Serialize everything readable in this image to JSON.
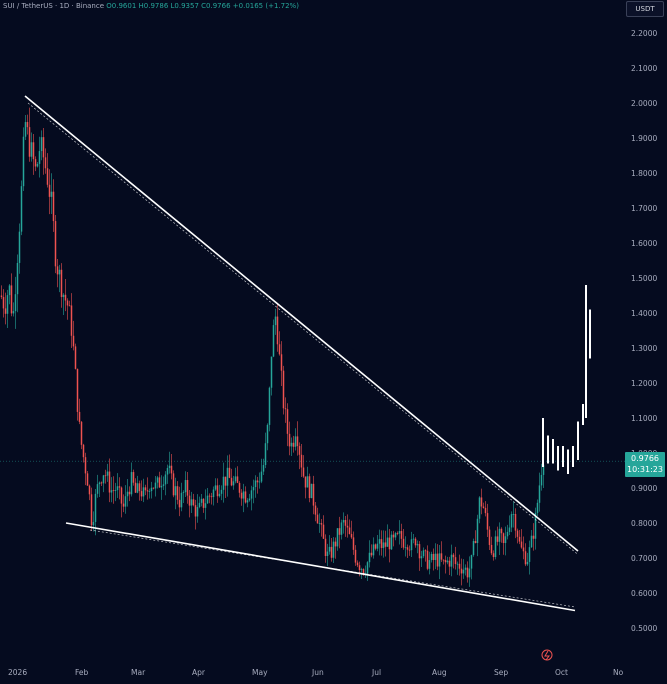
{
  "header": {
    "symbol": "SUI / TetherUS · 1D · Binance",
    "open": "O0.9601",
    "high": "H0.9786",
    "low": "L0.9357",
    "close": "C0.9766",
    "change": "+0.0165 (+1.72%)"
  },
  "currency_badge": "USDT",
  "last_price": {
    "price": "0.9766",
    "countdown": "10:31:23"
  },
  "colors": {
    "background": "#050b1f",
    "up": "#26a69a",
    "down": "#ef5350",
    "trendline": "#ffffff",
    "axis_text": "#a8adbf"
  },
  "chart_data": {
    "type": "candlestick",
    "x_tick_labels": [
      "2026",
      "Feb",
      "Mar",
      "Apr",
      "May",
      "Jun",
      "Jul",
      "Aug",
      "Sep",
      "Oct",
      "No"
    ],
    "y_tick_labels": [
      "2.2000",
      "2.1000",
      "2.0000",
      "1.9000",
      "1.8000",
      "1.7000",
      "1.6000",
      "1.5000",
      "1.4000",
      "1.3000",
      "1.2000",
      "1.1000",
      "1.0000",
      "0.9000",
      "0.8000",
      "0.7000",
      "0.6000",
      "0.5000"
    ],
    "ylim": [
      0.46,
      2.27
    ],
    "price_path": [
      [
        1,
        1.45
      ],
      [
        5,
        1.42
      ],
      [
        9,
        1.48
      ],
      [
        13,
        1.38
      ],
      [
        17,
        1.55
      ],
      [
        21,
        1.72
      ],
      [
        25,
        1.95
      ],
      [
        28,
        1.9
      ],
      [
        32,
        1.85
      ],
      [
        36,
        1.8
      ],
      [
        40,
        1.88
      ],
      [
        44,
        1.84
      ],
      [
        48,
        1.78
      ],
      [
        52,
        1.7
      ],
      [
        56,
        1.55
      ],
      [
        60,
        1.5
      ],
      [
        64,
        1.45
      ],
      [
        68,
        1.42
      ],
      [
        72,
        1.35
      ],
      [
        76,
        1.2
      ],
      [
        80,
        1.05
      ],
      [
        84,
        0.98
      ],
      [
        88,
        0.92
      ],
      [
        92,
        0.8
      ],
      [
        96,
        0.88
      ],
      [
        100,
        0.93
      ],
      [
        104,
        0.95
      ],
      [
        108,
        0.92
      ],
      [
        112,
        0.89
      ],
      [
        116,
        0.9
      ],
      [
        120,
        0.87
      ],
      [
        124,
        0.84
      ],
      [
        128,
        0.9
      ],
      [
        132,
        0.92
      ],
      [
        136,
        0.88
      ],
      [
        140,
        0.9
      ],
      [
        145,
        0.87
      ],
      [
        150,
        0.92
      ],
      [
        156,
        0.9
      ],
      [
        162,
        0.93
      ],
      [
        168,
        0.96
      ],
      [
        172,
        0.91
      ],
      [
        176,
        0.89
      ],
      [
        180,
        0.86
      ],
      [
        186,
        0.9
      ],
      [
        192,
        0.85
      ],
      [
        198,
        0.83
      ],
      [
        204,
        0.86
      ],
      [
        210,
        0.88
      ],
      [
        216,
        0.9
      ],
      [
        222,
        0.92
      ],
      [
        228,
        0.93
      ],
      [
        234,
        0.91
      ],
      [
        240,
        0.9
      ],
      [
        246,
        0.88
      ],
      [
        252,
        0.9
      ],
      [
        258,
        0.92
      ],
      [
        264,
        0.97
      ],
      [
        268,
        1.08
      ],
      [
        272,
        1.32
      ],
      [
        276,
        1.4
      ],
      [
        280,
        1.25
      ],
      [
        284,
        1.13
      ],
      [
        288,
        1.05
      ],
      [
        292,
        1.02
      ],
      [
        296,
        1.08
      ],
      [
        300,
        1.0
      ],
      [
        304,
        0.93
      ],
      [
        308,
        0.91
      ],
      [
        312,
        0.88
      ],
      [
        316,
        0.84
      ],
      [
        320,
        0.79
      ],
      [
        324,
        0.74
      ],
      [
        328,
        0.7
      ],
      [
        332,
        0.72
      ],
      [
        336,
        0.75
      ],
      [
        340,
        0.78
      ],
      [
        344,
        0.8
      ],
      [
        348,
        0.77
      ],
      [
        352,
        0.74
      ],
      [
        356,
        0.7
      ],
      [
        360,
        0.68
      ],
      [
        364,
        0.67
      ],
      [
        368,
        0.69
      ],
      [
        372,
        0.71
      ],
      [
        376,
        0.73
      ],
      [
        380,
        0.74
      ],
      [
        384,
        0.73
      ],
      [
        388,
        0.75
      ],
      [
        392,
        0.74
      ],
      [
        396,
        0.75
      ],
      [
        400,
        0.76
      ],
      [
        404,
        0.75
      ],
      [
        408,
        0.75
      ],
      [
        412,
        0.73
      ],
      [
        416,
        0.76
      ],
      [
        420,
        0.72
      ],
      [
        424,
        0.7
      ],
      [
        428,
        0.69
      ],
      [
        432,
        0.69
      ],
      [
        436,
        0.7
      ],
      [
        440,
        0.69
      ],
      [
        444,
        0.68
      ],
      [
        448,
        0.69
      ],
      [
        452,
        0.7
      ],
      [
        456,
        0.68
      ],
      [
        460,
        0.68
      ],
      [
        464,
        0.67
      ],
      [
        468,
        0.66
      ],
      [
        472,
        0.69
      ],
      [
        476,
        0.78
      ],
      [
        480,
        0.87
      ],
      [
        484,
        0.84
      ],
      [
        488,
        0.77
      ],
      [
        492,
        0.72
      ],
      [
        496,
        0.74
      ],
      [
        500,
        0.76
      ],
      [
        504,
        0.73
      ],
      [
        508,
        0.79
      ],
      [
        512,
        0.84
      ],
      [
        516,
        0.8
      ],
      [
        520,
        0.73
      ],
      [
        524,
        0.71
      ],
      [
        528,
        0.7
      ],
      [
        532,
        0.75
      ],
      [
        536,
        0.82
      ],
      [
        539,
        0.9
      ],
      [
        542,
        0.97
      ],
      [
        545,
        1.02
      ],
      [
        548,
        0.96
      ],
      [
        551,
        0.98
      ]
    ],
    "projection_bars": [
      {
        "x": 543,
        "low": 0.96,
        "high": 1.1
      },
      {
        "x": 548,
        "low": 0.97,
        "high": 1.05
      },
      {
        "x": 553,
        "low": 0.97,
        "high": 1.04
      },
      {
        "x": 558,
        "low": 0.95,
        "high": 1.02
      },
      {
        "x": 563,
        "low": 0.96,
        "high": 1.02
      },
      {
        "x": 568,
        "low": 0.94,
        "high": 1.01
      },
      {
        "x": 573,
        "low": 0.96,
        "high": 1.02
      },
      {
        "x": 578,
        "low": 0.98,
        "high": 1.09
      },
      {
        "x": 583,
        "low": 1.08,
        "high": 1.14
      },
      {
        "x": 586,
        "low": 1.1,
        "high": 1.48
      },
      {
        "x": 590,
        "low": 1.27,
        "high": 1.41
      }
    ],
    "trendlines": [
      {
        "name": "upper-resistance",
        "start": [
          25,
          2.02
        ],
        "end": [
          578,
          0.72
        ],
        "style": "solid"
      },
      {
        "name": "upper-resistance-dashed",
        "start": [
          28,
          2.0
        ],
        "end": [
          578,
          0.71
        ],
        "style": "dashed"
      },
      {
        "name": "lower-support",
        "start": [
          66,
          0.8
        ],
        "end": [
          575,
          0.55
        ],
        "style": "solid"
      },
      {
        "name": "lower-support-dashed",
        "start": [
          90,
          0.78
        ],
        "end": [
          575,
          0.56
        ],
        "style": "dashed"
      }
    ],
    "last_price_value": 0.9766
  }
}
